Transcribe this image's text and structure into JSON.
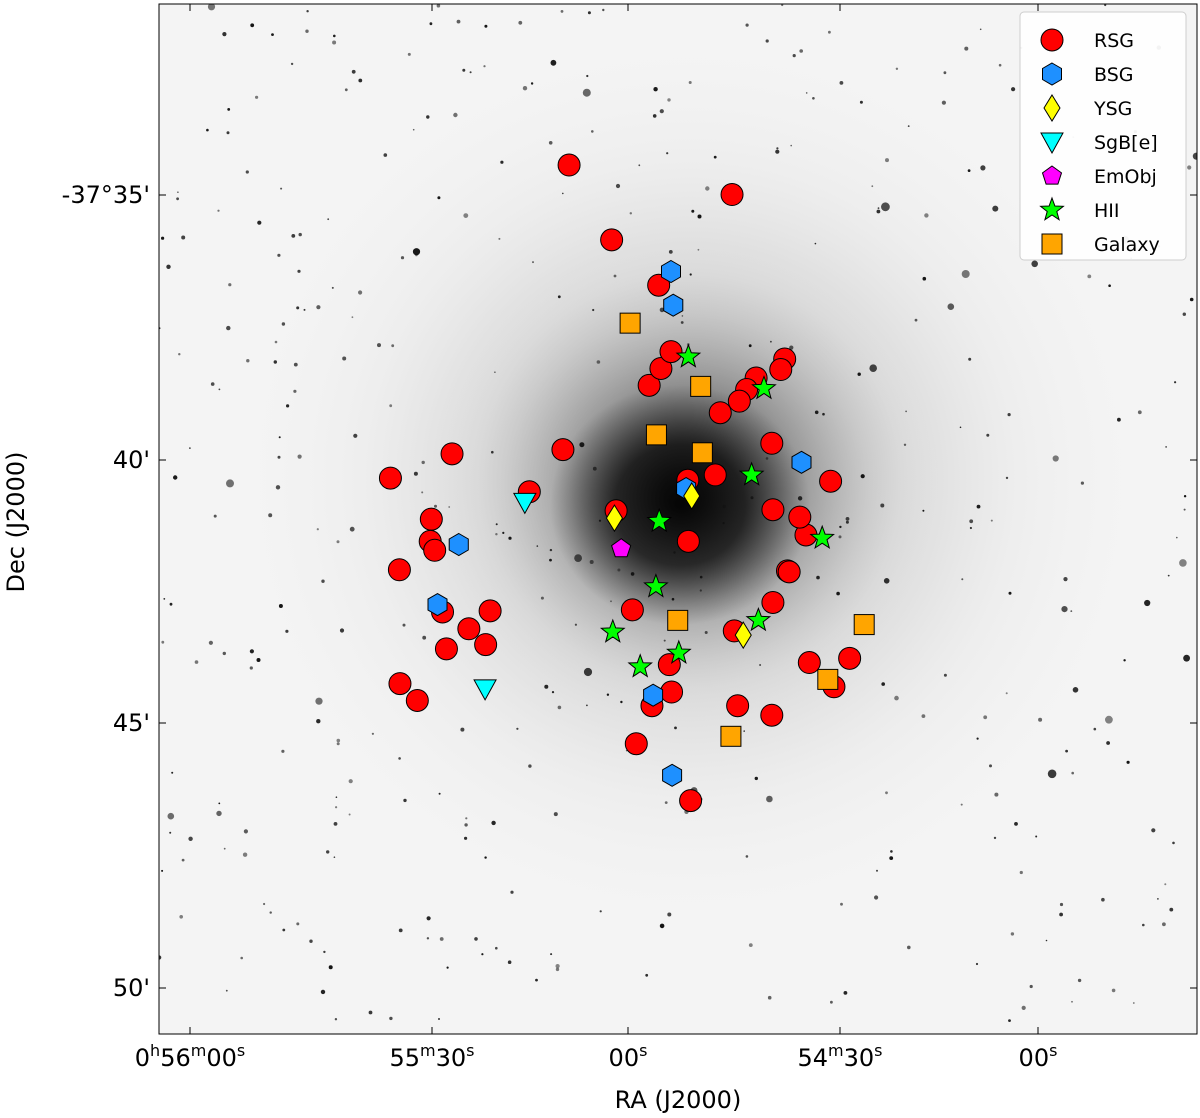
{
  "chart_data": {
    "type": "scatter",
    "xlabel": "RA (J2000)",
    "ylabel": "Dec (J2000)",
    "x_ticks": [
      {
        "h": "0",
        "m": "56",
        "s": "00"
      },
      {
        "h": "",
        "m": "55",
        "s": "30"
      },
      {
        "h": "",
        "m": "",
        "s": "00"
      },
      {
        "h": "",
        "m": "54",
        "s": "30"
      },
      {
        "h": "",
        "m": "",
        "s": "00"
      }
    ],
    "y_ticks": [
      "-37°35'",
      "40'",
      "45'",
      "50'"
    ],
    "legend_position": "top-right",
    "series": [
      {
        "name": "RSG",
        "marker": "circle",
        "color": "#ff0000",
        "points": [
          [
            -1.31,
            -35.88
          ],
          [
            -2.07,
            -34.46
          ],
          [
            -0.47,
            -36.74
          ],
          [
            0.84,
            -35.02
          ],
          [
            1.78,
            -38.14
          ],
          [
            1.71,
            -38.34
          ],
          [
            1.27,
            -38.5
          ],
          [
            1.1,
            -38.72
          ],
          [
            0.97,
            -38.94
          ],
          [
            0.63,
            -39.16
          ],
          [
            0.54,
            -40.34
          ],
          [
            0.05,
            -40.44
          ],
          [
            0.06,
            -41.6
          ],
          [
            -1.23,
            -41.02
          ],
          [
            1.57,
            -41.0
          ],
          [
            1.55,
            -39.74
          ],
          [
            2.16,
            -41.48
          ],
          [
            2.6,
            -40.46
          ],
          [
            2.05,
            -41.14
          ],
          [
            1.83,
            -42.16
          ],
          [
            1.86,
            -42.18
          ],
          [
            1.57,
            -42.76
          ],
          [
            0.88,
            -43.3
          ],
          [
            0.94,
            -44.72
          ],
          [
            1.55,
            -44.9
          ],
          [
            2.66,
            -44.36
          ],
          [
            2.94,
            -43.82
          ],
          [
            2.22,
            -43.9
          ],
          [
            -0.28,
            -43.94
          ],
          [
            -0.94,
            -42.9
          ],
          [
            -0.59,
            -44.72
          ],
          [
            -2.78,
            -40.66
          ],
          [
            -2.18,
            -39.86
          ],
          [
            -4.16,
            -39.94
          ],
          [
            -5.26,
            -40.4
          ],
          [
            -4.53,
            -41.18
          ],
          [
            -4.55,
            -41.6
          ],
          [
            -4.47,
            -41.77
          ],
          [
            -5.1,
            -42.14
          ],
          [
            -4.33,
            -42.94
          ],
          [
            -3.48,
            -42.92
          ],
          [
            -4.26,
            -43.64
          ],
          [
            -3.56,
            -43.56
          ],
          [
            -3.86,
            -43.26
          ],
          [
            -5.09,
            -44.3
          ],
          [
            -4.78,
            -44.62
          ],
          [
            -0.24,
            -44.46
          ],
          [
            -0.87,
            -45.44
          ],
          [
            0.1,
            -46.52
          ],
          [
            -0.64,
            -38.64
          ],
          [
            -0.43,
            -38.32
          ],
          [
            -0.25,
            -38.0
          ]
        ]
      },
      {
        "name": "BSG",
        "marker": "hexagon",
        "color": "#1e90ff",
        "points": [
          [
            -0.25,
            -36.48
          ],
          [
            -0.21,
            -37.12
          ],
          [
            2.08,
            -40.1
          ],
          [
            0.02,
            -40.6
          ],
          [
            -4.04,
            -41.66
          ],
          [
            -4.42,
            -42.8
          ],
          [
            -0.57,
            -44.52
          ],
          [
            -0.23,
            -46.04
          ]
        ]
      },
      {
        "name": "YSG",
        "marker": "diamond",
        "color": "#ffff00",
        "points": [
          [
            -1.26,
            -41.16
          ],
          [
            0.12,
            -40.74
          ],
          [
            1.04,
            -43.38
          ]
        ]
      },
      {
        "name": "SgB[e]",
        "marker": "triangle-down",
        "color": "#00ffff",
        "points": [
          [
            -2.86,
            -40.86
          ],
          [
            -3.57,
            -44.4
          ]
        ]
      },
      {
        "name": "EmObj",
        "marker": "pentagon",
        "color": "#ff00ff",
        "points": [
          [
            -1.14,
            -41.74
          ]
        ]
      },
      {
        "name": "HII",
        "marker": "star",
        "color": "#00ff00",
        "points": [
          [
            0.06,
            -38.1
          ],
          [
            1.41,
            -38.7
          ],
          [
            1.19,
            -40.34
          ],
          [
            -0.46,
            -41.22
          ],
          [
            2.45,
            -41.54
          ],
          [
            -0.52,
            -42.46
          ],
          [
            -1.29,
            -43.32
          ],
          [
            1.31,
            -43.1
          ],
          [
            -0.11,
            -43.72
          ],
          [
            -0.8,
            -43.98
          ]
        ]
      },
      {
        "name": "Galaxy",
        "marker": "square",
        "color": "#ffa500",
        "points": [
          [
            -0.98,
            -37.46
          ],
          [
            0.28,
            -38.66
          ],
          [
            -0.51,
            -39.58
          ],
          [
            0.31,
            -39.92
          ],
          [
            -0.13,
            -43.1
          ],
          [
            3.2,
            -43.18
          ],
          [
            2.55,
            -44.22
          ],
          [
            0.82,
            -45.3
          ]
        ]
      }
    ]
  }
}
